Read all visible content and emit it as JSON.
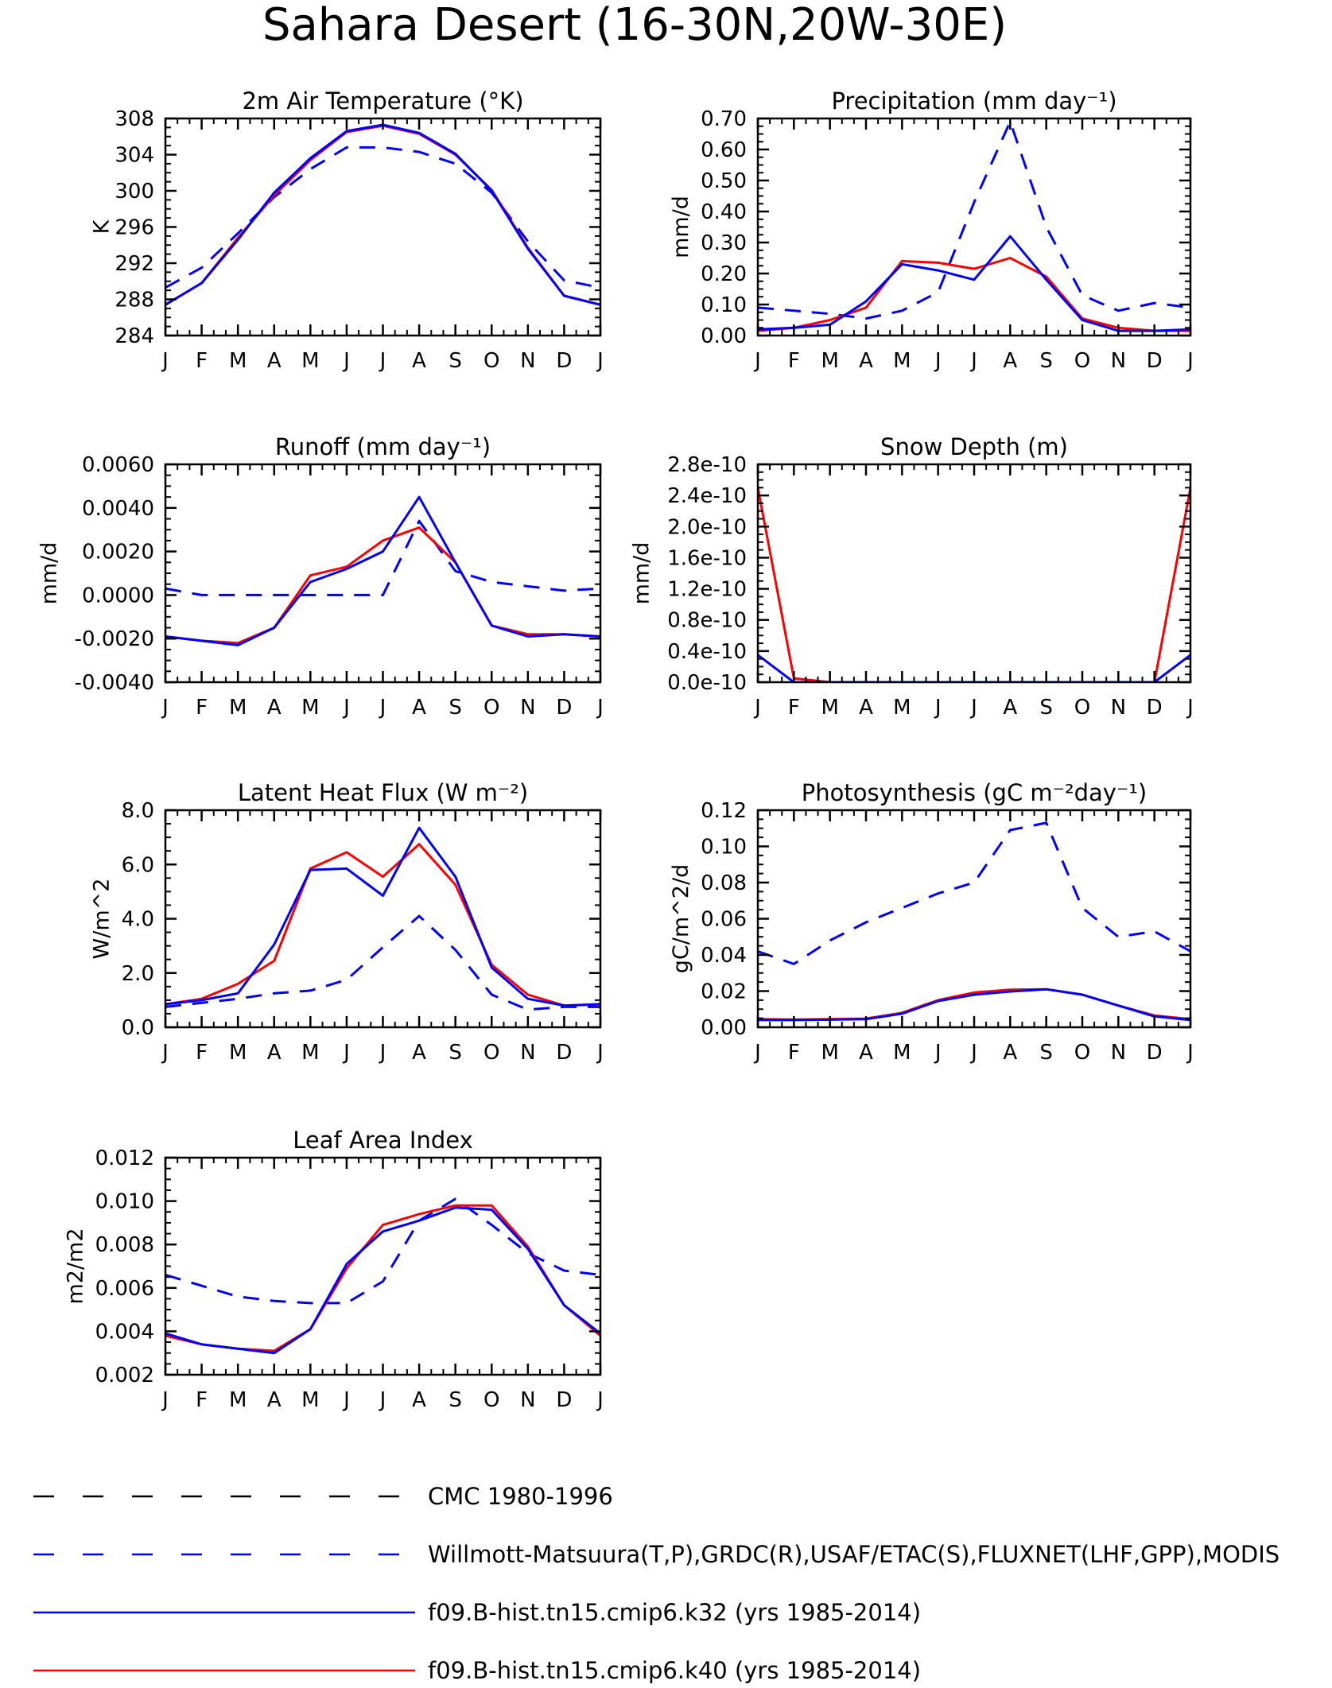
{
  "title": "Sahara Desert (16-30N,20W-30E)",
  "months": [
    "J",
    "F",
    "M",
    "A",
    "M",
    "J",
    "J",
    "A",
    "S",
    "O",
    "N",
    "D",
    "J"
  ],
  "legend": [
    {
      "label": "CMC 1980-1996",
      "color": "#000000",
      "dash": true
    },
    {
      "label": "Willmott-Matsuura(T,P),GRDC(R),USAF/ETAC(S),FLUXNET(LHF,GPP),MODIS",
      "color": "#0000ff",
      "dash": true
    },
    {
      "label": "f09.B-hist.tn15.cmip6.k32 (yrs 1985-2014)",
      "color": "#0000ff",
      "dash": false
    },
    {
      "label": "f09.B-hist.tn15.cmip6.k40 (yrs 1985-2014)",
      "color": "#ff0000",
      "dash": false
    }
  ],
  "colors": {
    "obs": "#0000ff",
    "k32": "#0000ff",
    "k40": "#ff0000",
    "cmc": "#000000"
  },
  "chart_data": [
    {
      "type": "line",
      "title": "2m Air Temperature (°K)",
      "ylabel": "K",
      "ylim": [
        284,
        308
      ],
      "yticks": [
        "284",
        "288",
        "292",
        "296",
        "300",
        "304",
        "308"
      ],
      "series": [
        {
          "name": "Willmott-Matsuura(T,P),GRDC(R),USAF/ETAC(S),FLUXNET(LHF,GPP),MODIS",
          "values": [
            289.3,
            291.5,
            295.3,
            299.3,
            302.4,
            304.8,
            304.8,
            304.3,
            303.0,
            299.8,
            294.4,
            290.1,
            289.3
          ]
        },
        {
          "name": "f09.B-hist.tn15.cmip6.k32 (yrs 1985-2014)",
          "values": [
            287.4,
            289.8,
            294.6,
            299.8,
            303.6,
            306.6,
            307.3,
            306.4,
            304.1,
            300.0,
            293.6,
            288.4,
            287.4
          ]
        },
        {
          "name": "f09.B-hist.tn15.cmip6.k40 (yrs 1985-2014)",
          "values": [
            287.4,
            289.8,
            294.8,
            299.5,
            303.4,
            306.5,
            307.2,
            306.3,
            304.0,
            300.1,
            293.7,
            288.4,
            287.4
          ]
        }
      ]
    },
    {
      "type": "line",
      "title": "Precipitation (mm day⁻¹)",
      "ylabel": "mm/d",
      "ylim": [
        0,
        0.7
      ],
      "yticks": [
        "0.00",
        "0.10",
        "0.20",
        "0.30",
        "0.40",
        "0.50",
        "0.60",
        "0.70"
      ],
      "series": [
        {
          "name": "Willmott-Matsuura(T,P),GRDC(R),USAF/ETAC(S),FLUXNET(LHF,GPP),MODIS",
          "values": [
            0.09,
            0.08,
            0.07,
            0.055,
            0.08,
            0.14,
            0.43,
            0.69,
            0.35,
            0.13,
            0.08,
            0.105,
            0.09
          ]
        },
        {
          "name": "f09.B-hist.tn15.cmip6.k32 (yrs 1985-2014)",
          "values": [
            0.02,
            0.025,
            0.035,
            0.11,
            0.23,
            0.21,
            0.18,
            0.32,
            0.18,
            0.05,
            0.015,
            0.015,
            0.02
          ]
        },
        {
          "name": "f09.B-hist.tn15.cmip6.k40 (yrs 1985-2014)",
          "values": [
            0.015,
            0.025,
            0.05,
            0.09,
            0.24,
            0.235,
            0.215,
            0.25,
            0.19,
            0.055,
            0.025,
            0.015,
            0.015
          ]
        }
      ]
    },
    {
      "type": "line",
      "title": "Runoff (mm day⁻¹)",
      "ylabel": "mm/d",
      "ylim": [
        -0.004,
        0.006
      ],
      "yticks": [
        "-0.0040",
        "-0.0020",
        "0.0000",
        "0.0020",
        "0.0040",
        "0.0060"
      ],
      "series": [
        {
          "name": "Willmott-Matsuura(T,P),GRDC(R),USAF/ETAC(S),FLUXNET(LHF,GPP),MODIS",
          "values": [
            0.0003,
            0.0,
            0.0,
            0.0,
            0.0,
            0.0,
            0.0,
            0.0034,
            0.0011,
            0.0006,
            0.0004,
            0.0002,
            0.0003
          ]
        },
        {
          "name": "f09.B-hist.tn15.cmip6.k32 (yrs 1985-2014)",
          "values": [
            -0.0019,
            -0.0021,
            -0.0023,
            -0.0015,
            0.0006,
            0.0012,
            0.002,
            0.0045,
            0.0015,
            -0.0014,
            -0.0019,
            -0.0018,
            -0.0019
          ]
        },
        {
          "name": "f09.B-hist.tn15.cmip6.k40 (yrs 1985-2014)",
          "values": [
            -0.0019,
            -0.0021,
            -0.0022,
            -0.0015,
            0.0009,
            0.0013,
            0.0025,
            0.0031,
            0.0015,
            -0.0014,
            -0.0018,
            -0.0018,
            -0.0019
          ]
        }
      ]
    },
    {
      "type": "line",
      "title": "Snow Depth (m)",
      "ylabel": "mm/d",
      "ylim": [
        0,
        2.8
      ],
      "yticks": [
        "0.0e-10",
        "0.4e-10",
        "0.8e-10",
        "1.2e-10",
        "1.6e-10",
        "2.0e-10",
        "2.4e-10",
        "2.8e-10"
      ],
      "series": [
        {
          "name": "f09.B-hist.tn15.cmip6.k32 (yrs 1985-2014)",
          "values": [
            0.35,
            0.0,
            0.0,
            0.0,
            0.0,
            0.0,
            0.0,
            0.0,
            0.0,
            0.0,
            0.0,
            0.0,
            0.35
          ]
        },
        {
          "name": "f09.B-hist.tn15.cmip6.k40 (yrs 1985-2014)",
          "values": [
            2.5,
            0.05,
            0.0,
            0.0,
            0.0,
            0.0,
            0.0,
            0.0,
            0.0,
            0.0,
            0.0,
            0.0,
            2.5
          ]
        }
      ]
    },
    {
      "type": "line",
      "title": "Latent Heat Flux (W m⁻²)",
      "ylabel": "W/m^2",
      "ylim": [
        0,
        8
      ],
      "yticks": [
        "0.0",
        "2.0",
        "4.0",
        "6.0",
        "8.0"
      ],
      "series": [
        {
          "name": "Willmott-Matsuura(T,P),GRDC(R),USAF/ETAC(S),FLUXNET(LHF,GPP),MODIS",
          "values": [
            0.75,
            0.9,
            1.05,
            1.25,
            1.35,
            1.75,
            2.95,
            4.1,
            2.85,
            1.2,
            0.65,
            0.75,
            0.75
          ]
        },
        {
          "name": "f09.B-hist.tn15.cmip6.k32 (yrs 1985-2014)",
          "values": [
            0.85,
            1.0,
            1.25,
            3.05,
            5.8,
            5.85,
            4.85,
            7.35,
            5.55,
            2.2,
            1.05,
            0.8,
            0.85
          ]
        },
        {
          "name": "f09.B-hist.tn15.cmip6.k40 (yrs 1985-2014)",
          "values": [
            0.85,
            1.05,
            1.6,
            2.45,
            5.85,
            6.45,
            5.55,
            6.75,
            5.25,
            2.3,
            1.2,
            0.8,
            0.85
          ]
        }
      ]
    },
    {
      "type": "line",
      "title": "Photosynthesis (gC m⁻²day⁻¹)",
      "ylabel": "gC/m^2/d",
      "ylim": [
        0,
        0.12
      ],
      "yticks": [
        "0.00",
        "0.02",
        "0.04",
        "0.06",
        "0.08",
        "0.10",
        "0.12"
      ],
      "series": [
        {
          "name": "Willmott-Matsuura(T,P),GRDC(R),USAF/ETAC(S),FLUXNET(LHF,GPP),MODIS",
          "values": [
            0.042,
            0.035,
            0.048,
            0.058,
            0.066,
            0.074,
            0.08,
            0.109,
            0.113,
            0.066,
            0.05,
            0.053,
            0.042
          ]
        },
        {
          "name": "f09.B-hist.tn15.cmip6.k32 (yrs 1985-2014)",
          "values": [
            0.004,
            0.004,
            0.0042,
            0.0045,
            0.0075,
            0.0145,
            0.018,
            0.0198,
            0.021,
            0.018,
            0.012,
            0.006,
            0.004
          ]
        },
        {
          "name": "f09.B-hist.tn15.cmip6.k40 (yrs 1985-2014)",
          "values": [
            0.0045,
            0.0042,
            0.0045,
            0.0048,
            0.008,
            0.015,
            0.0192,
            0.0208,
            0.021,
            0.018,
            0.012,
            0.0065,
            0.0045
          ]
        }
      ]
    },
    {
      "type": "line",
      "title": "Leaf Area Index",
      "ylabel": "m2/m2",
      "ylim": [
        0.002,
        0.012
      ],
      "yticks": [
        "0.002",
        "0.004",
        "0.006",
        "0.008",
        "0.010",
        "0.012"
      ],
      "series": [
        {
          "name": "Willmott-Matsuura(T,P),GRDC(R),USAF/ETAC(S),FLUXNET(LHF,GPP),MODIS",
          "values": [
            0.0066,
            0.0061,
            0.0056,
            0.0054,
            0.0053,
            0.0053,
            0.0063,
            0.0091,
            0.0101,
            0.0089,
            0.0076,
            0.0068,
            0.0066
          ]
        },
        {
          "name": "f09.B-hist.tn15.cmip6.k32 (yrs 1985-2014)",
          "values": [
            0.0039,
            0.0034,
            0.0032,
            0.003,
            0.0041,
            0.0071,
            0.0086,
            0.0091,
            0.0097,
            0.0096,
            0.0078,
            0.0052,
            0.0039
          ]
        },
        {
          "name": "f09.B-hist.tn15.cmip6.k40 (yrs 1985-2014)",
          "values": [
            0.0038,
            0.0034,
            0.0032,
            0.0031,
            0.0041,
            0.0069,
            0.0089,
            0.0094,
            0.0098,
            0.0098,
            0.0079,
            0.0052,
            0.0038
          ]
        }
      ]
    }
  ]
}
